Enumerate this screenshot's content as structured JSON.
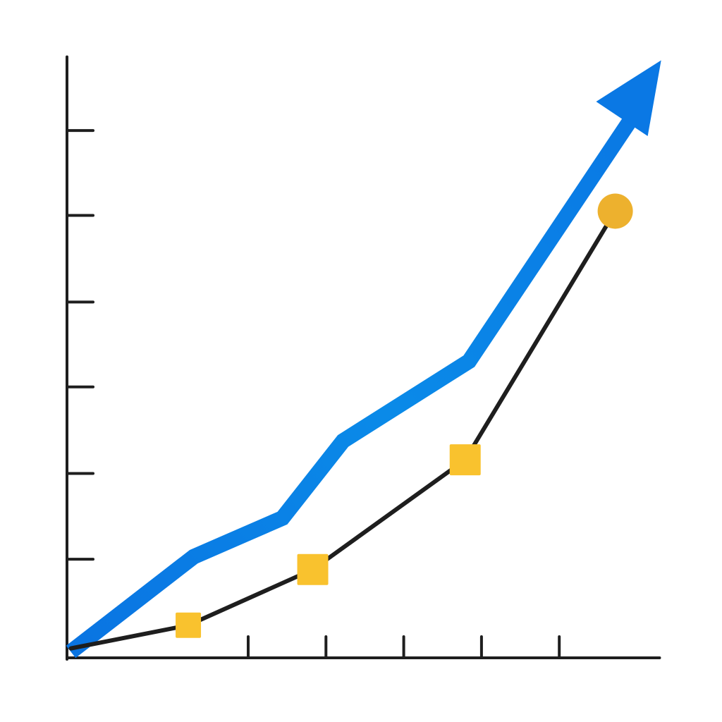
{
  "chart_data": {
    "type": "line",
    "title": "",
    "xlabel": "",
    "ylabel": "",
    "xlim": [
      0,
      7.62
    ],
    "ylim": [
      0,
      7.01
    ],
    "x_ticks": [
      2.33,
      3.33,
      4.33,
      5.33,
      6.33
    ],
    "y_ticks": [
      1.15,
      2.15,
      3.16,
      4.15,
      5.16,
      6.15
    ],
    "grid": false,
    "series": [
      {
        "style": "thick-arrow",
        "color": "#0a80e6",
        "points": [
          [
            0.05,
            0.07
          ],
          [
            1.63,
            1.18
          ],
          [
            2.77,
            1.63
          ],
          [
            3.55,
            2.53
          ],
          [
            5.17,
            3.46
          ],
          [
            7.34,
            6.4
          ]
        ],
        "arrow_tip": [
          7.64,
          6.97
        ]
      },
      {
        "style": "thin-line-markers",
        "color": "#1e1e1e",
        "marker_color": "#f9c22e",
        "end_marker_color": "#edb12e",
        "points": [
          [
            0.05,
            0.11
          ],
          [
            1.56,
            0.38
          ],
          [
            3.16,
            1.03
          ],
          [
            5.12,
            2.31
          ],
          [
            7.05,
            5.21
          ]
        ],
        "markers": [
          "none",
          "square-small",
          "square",
          "square",
          "circle"
        ]
      }
    ]
  }
}
